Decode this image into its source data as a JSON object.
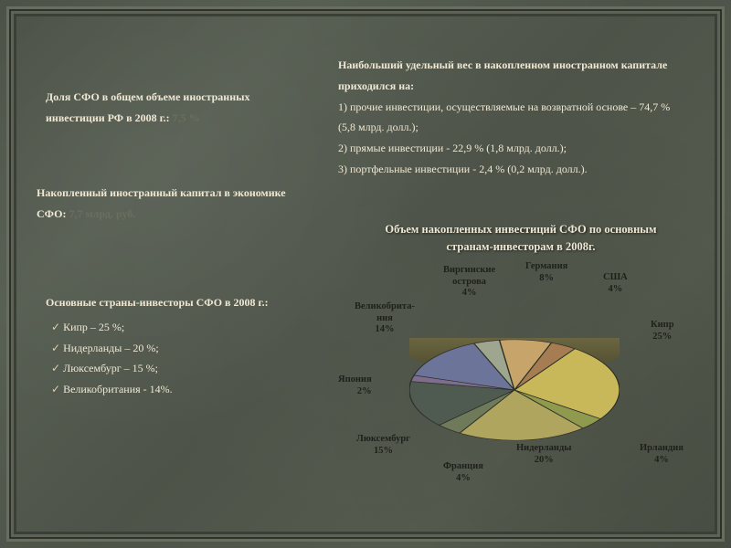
{
  "background_color": "#525949",
  "text_color": "#efe8d4",
  "muted_text_color": "#6b6f62",
  "block1": {
    "prefix": "Доля СФО в общем объеме иностранных инвестиции РФ в 2008 г.: ",
    "value": "7,5 %"
  },
  "block2": {
    "heading": "Наибольший удельный вес в накопленном иностранном капитале приходился на:",
    "items": [
      "1) прочие инвестиции, осуществляемые на возвратной основе – 74,7 % (5,8 млрд. долл.);",
      "2) прямые инвестиции - 22,9 % (1,8 млрд. долл.);",
      "3) портфельные инвестиции - 2,4 % (0,2 млрд. долл.)."
    ]
  },
  "block3": {
    "prefix": "Накопленный иностранный капитал в экономике СФО: ",
    "value": "7,7 млрд. руб."
  },
  "block4": {
    "heading": "Основные страны-инвесторы СФО в 2008 г.:",
    "items": [
      "Кипр – 25 %;",
      "Нидерланды – 20 %;",
      "Люксембург – 15 %;",
      "Великобритания -  14%."
    ]
  },
  "chart": {
    "title": "Объем накопленных инвестиций СФО по основным странам-инвесторам в 2008г.",
    "type": "pie",
    "tilt_3d": true,
    "aspect_ratio": 0.48,
    "background_color": "transparent",
    "label_fontsize": 10.5,
    "label_color": "#1f201b",
    "title_fontsize": 12.5,
    "title_color": "#eee8d5",
    "slices": [
      {
        "id": "cyprus",
        "label": "Кипр",
        "pct": 25,
        "color": "#c8b85a"
      },
      {
        "id": "ireland",
        "label": "Ирландия",
        "pct": 4,
        "color": "#8f9a4f"
      },
      {
        "id": "nether",
        "label": "Нидерланды",
        "pct": 20,
        "color": "#b0a55e"
      },
      {
        "id": "france",
        "label": "Франция",
        "pct": 4,
        "color": "#6f7a5a"
      },
      {
        "id": "lux",
        "label": "Люксембург",
        "pct": 15,
        "color": "#4f5a50"
      },
      {
        "id": "japan",
        "label": "Япония",
        "pct": 2,
        "color": "#7e6d8c"
      },
      {
        "id": "uk",
        "label": "Великобрита-\nния",
        "pct": 14,
        "color": "#6c7499"
      },
      {
        "id": "virgin",
        "label": "Виргинские\nострова",
        "pct": 4,
        "color": "#9ea68f"
      },
      {
        "id": "germany",
        "label": "Германия",
        "pct": 8,
        "color": "#c7a46a"
      },
      {
        "id": "usa",
        "label": "США",
        "pct": 4,
        "color": "#a67d52"
      }
    ],
    "start_angle_deg": -55
  }
}
